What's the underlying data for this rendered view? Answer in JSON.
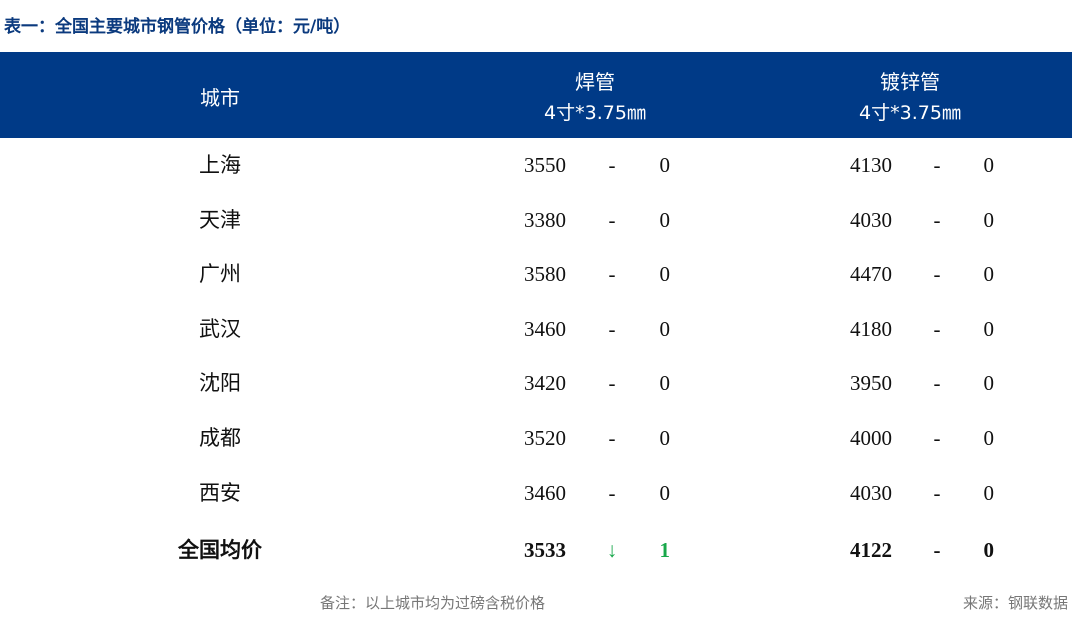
{
  "title": "表一：全国主要城市钢管价格（单位：元/吨）",
  "header": {
    "city": "城市",
    "weld": "焊管",
    "weld_spec": "4寸*3.75㎜",
    "galv": "镀锌管",
    "galv_spec": "4寸*3.75㎜"
  },
  "rows": [
    {
      "city": "上海",
      "weld": "3550",
      "weld_trend": "-",
      "weld_change": "0",
      "galv": "4130",
      "galv_trend": "-",
      "galv_change": "0"
    },
    {
      "city": "天津",
      "weld": "3380",
      "weld_trend": "-",
      "weld_change": "0",
      "galv": "4030",
      "galv_trend": "-",
      "galv_change": "0"
    },
    {
      "city": "广州",
      "weld": "3580",
      "weld_trend": "-",
      "weld_change": "0",
      "galv": "4470",
      "galv_trend": "-",
      "galv_change": "0"
    },
    {
      "city": "武汉",
      "weld": "3460",
      "weld_trend": "-",
      "weld_change": "0",
      "galv": "4180",
      "galv_trend": "-",
      "galv_change": "0"
    },
    {
      "city": "沈阳",
      "weld": "3420",
      "weld_trend": "-",
      "weld_change": "0",
      "galv": "3950",
      "galv_trend": "-",
      "galv_change": "0"
    },
    {
      "city": "成都",
      "weld": "3520",
      "weld_trend": "-",
      "weld_change": "0",
      "galv": "4000",
      "galv_trend": "-",
      "galv_change": "0"
    },
    {
      "city": "西安",
      "weld": "3460",
      "weld_trend": "-",
      "weld_change": "0",
      "galv": "4030",
      "galv_trend": "-",
      "galv_change": "0"
    }
  ],
  "average": {
    "city": "全国均价",
    "weld": "3533",
    "weld_trend": "↓",
    "weld_change": "1",
    "galv": "4122",
    "galv_trend": "-",
    "galv_change": "0"
  },
  "footer": {
    "note": "备注：以上城市均为过磅含税价格",
    "source": "来源：钢联数据"
  },
  "colors": {
    "header_bg": "#003a87",
    "down": "#19a84b"
  }
}
